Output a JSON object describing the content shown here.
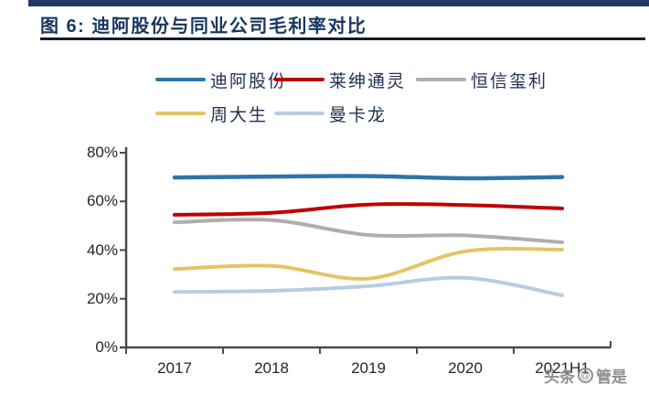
{
  "header": {
    "title": "图 6:  迪阿股份与同业公司毛利率对比"
  },
  "watermark": {
    "platform": "头条",
    "badge": "@",
    "name": "管是"
  },
  "chart_data": {
    "type": "line",
    "title": "迪阿股份与同业公司毛利率对比",
    "categories": [
      "2017",
      "2018",
      "2019",
      "2020",
      "2021H1"
    ],
    "series": [
      {
        "name": "迪阿股份",
        "color": "#2E74A8",
        "values": [
          69.8,
          70.2,
          70.4,
          69.5,
          70.0
        ]
      },
      {
        "name": "莱绅通灵",
        "color": "#C00000",
        "values": [
          54.5,
          55.3,
          58.7,
          58.5,
          57.1
        ]
      },
      {
        "name": "恒信玺利",
        "color": "#AEAEAE",
        "values": [
          51.4,
          52.3,
          46.2,
          46.0,
          43.2
        ]
      },
      {
        "name": "周大生",
        "color": "#E3C567",
        "values": [
          32.2,
          33.5,
          28.3,
          39.5,
          40.2
        ]
      },
      {
        "name": "曼卡龙",
        "color": "#B8CCE0",
        "values": [
          22.8,
          23.3,
          25.2,
          28.6,
          21.4
        ]
      }
    ],
    "ylim": [
      0,
      80
    ],
    "y_ticks": [
      "0%",
      "20%",
      "40%",
      "60%",
      "80%"
    ],
    "xlabel": "",
    "ylabel": "",
    "grid": false,
    "legend_position": "top"
  }
}
